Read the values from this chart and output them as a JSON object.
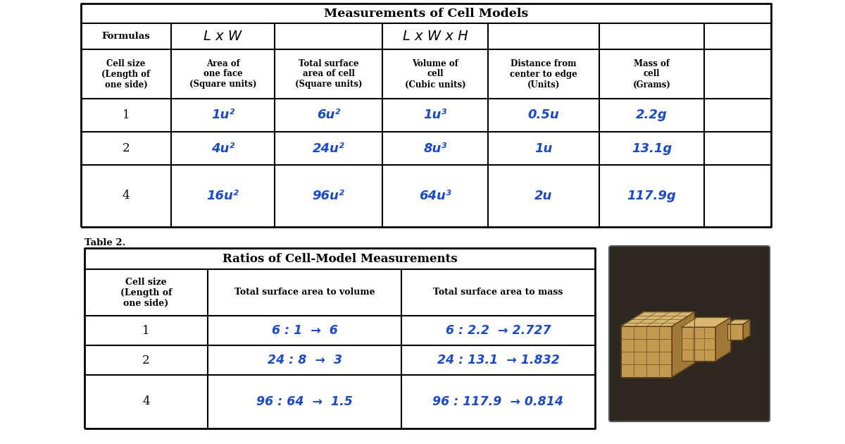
{
  "bg_color": "#ffffff",
  "table1_title": "Measurements of Cell Models",
  "table1_headers": [
    "Cell size\n(Length of\none side)",
    "Area of\none face\n(Square units)",
    "Total surface\narea of cell\n(Square units)",
    "Volume of\ncell\n(Cubic units)",
    "Distance from\ncenter to edge\n(Units)",
    "Mass of\ncell\n(Grams)"
  ],
  "table1_rows": [
    [
      "1",
      "1u²",
      "6u²",
      "1u³",
      "0.5u",
      "2.2g"
    ],
    [
      "2",
      "4u²",
      "24u²",
      "8u³",
      "1u",
      "13.1g"
    ],
    [
      "4",
      "16u²",
      "96u²",
      "64u³",
      "2u",
      "117.9g"
    ]
  ],
  "table2_label": "Table 2.",
  "table2_title": "Ratios of Cell-Model Measurements",
  "table2_headers": [
    "Cell size\n(Length of\none side)",
    "Total surface area to volume",
    "Total surface area to mass"
  ],
  "table2_rows": [
    [
      "1",
      "6 : 1  →  6",
      "6 : 2.2  → 2.727"
    ],
    [
      "2",
      "24 : 8  →  3",
      "24 : 13.1  → 1.832"
    ],
    [
      "4",
      "96 : 64  →  1.5",
      "96 : 117.9  → 0.814"
    ]
  ],
  "formula_lxw": "L x W",
  "formula_lxwxh": "L x W x H",
  "handwritten_color": "#1a4acc",
  "header_color": "#000000",
  "line_color": "#000000"
}
